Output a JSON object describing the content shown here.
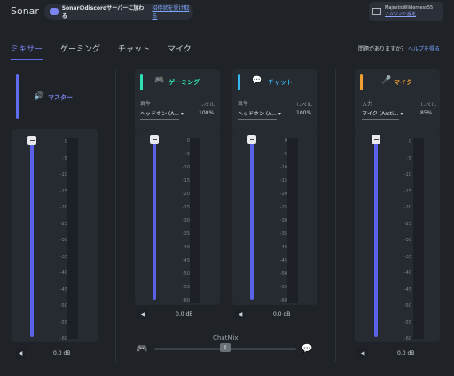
{
  "header": {
    "app_title": "Sonar",
    "discord_join": "Sonarのdiscordサーバーに加わる",
    "discord_invite": "招待状を受け取る",
    "username": "MajesticWilderness55",
    "account_settings": "アカウント設定"
  },
  "tabs": [
    {
      "label": "ミキサー"
    },
    {
      "label": "ゲーミング"
    },
    {
      "label": "チャット"
    },
    {
      "label": "マイク"
    }
  ],
  "help": {
    "question": "問題がありますか？",
    "link": "ヘルプを得る"
  },
  "ticks": [
    "0",
    "-5",
    "-10",
    "-15",
    "-20",
    "-25",
    "-30",
    "-35",
    "-40",
    "-45",
    "-50",
    "-55",
    "-60"
  ],
  "channels": {
    "master": {
      "label": "マスター",
      "db": "0.0 dB",
      "accent": "#5f6cf0"
    },
    "gaming": {
      "label": "ゲーミング",
      "device_caption": "再生",
      "device": "ヘッドホン (A...",
      "level_caption": "レベル",
      "level": "100%",
      "db": "0.0 dB",
      "accent": "#2fe0b4"
    },
    "chat": {
      "label": "チャット",
      "device_caption": "再生",
      "device": "ヘッドホン (A...",
      "level_caption": "レベル",
      "level": "100%",
      "db": "0.0 dB",
      "accent": "#37b9f0"
    },
    "mic": {
      "label": "マイク",
      "device_caption": "入力",
      "device": "マイク (Arcti...",
      "level_caption": "レベル",
      "level": "85%",
      "db": "0.0 dB",
      "accent": "#f0a030"
    }
  },
  "chatmix": {
    "label": "ChatMix",
    "knob": "||"
  },
  "icons": {
    "discord": "discord-icon",
    "mail": "mail-icon",
    "speaker": "speaker-icon",
    "gamepad": "gamepad-icon",
    "chat": "chat-bubble-icon",
    "mic": "microphone-icon"
  }
}
